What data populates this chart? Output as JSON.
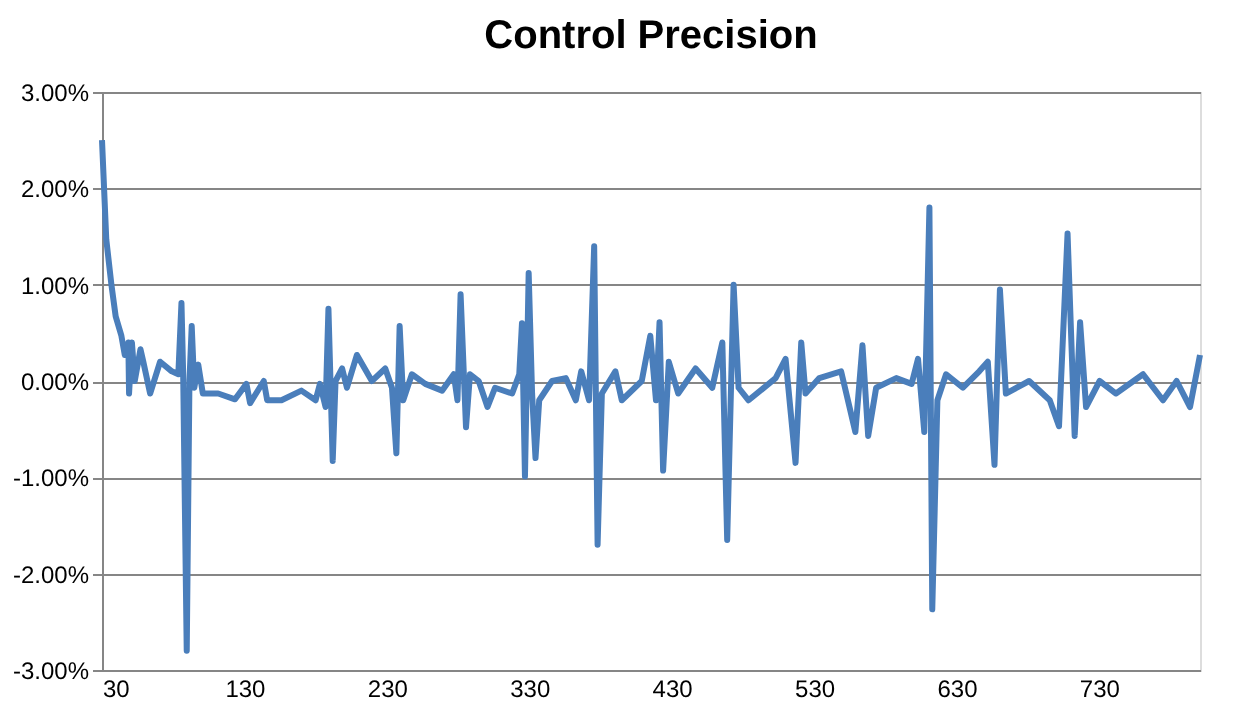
{
  "chart_data": {
    "type": "line",
    "title": "Control Precision",
    "x": [
      30,
      33,
      36.6,
      39.6,
      43.6,
      46,
      48.5,
      49,
      51,
      53,
      57,
      59,
      63.8,
      70.8,
      79,
      83.6,
      85.8,
      87,
      89.5,
      91.4,
      93,
      94.8,
      97.6,
      100.8,
      111.6,
      123.4,
      131.4,
      134,
      143.6,
      146,
      156,
      170,
      180,
      183,
      187,
      189,
      192,
      194,
      198.6,
      202,
      209,
      219.5,
      228.9,
      233.6,
      236.7,
      239,
      241.5,
      247.6,
      257,
      268.8,
      277,
      279.6,
      281.8,
      285.6,
      288.4,
      294.5,
      300.7,
      306,
      318,
      323,
      324.9,
      327,
      329.6,
      332,
      334.4,
      337,
      346,
      355.7,
      362.7,
      366.5,
      372,
      375.6,
      378,
      381,
      390.5,
      395,
      409,
      415,
      419,
      421.5,
      424,
      428,
      434.6,
      446.8,
      458.5,
      465.6,
      469,
      473.5,
      477,
      484,
      503,
      510,
      517,
      521,
      524,
      533.7,
      549,
      559,
      564,
      568,
      573.6,
      587.7,
      598.5,
      603,
      607.4,
      611,
      613,
      616.6,
      622.7,
      634.5,
      646,
      652,
      656.7,
      660.5,
      664.7,
      681,
      695.5,
      702,
      708,
      713,
      716.8,
      721,
      730.5,
      742,
      761,
      775,
      784.6,
      794,
      801
    ],
    "series": [
      {
        "color": "#4a7ebb",
        "values": [
          2.5,
          1.47,
          1.0,
          0.67,
          0.47,
          0.27,
          0.4,
          -0.13,
          0.4,
          0,
          0.33,
          0.2,
          -0.13,
          0.2,
          0.1,
          0.07,
          0.81,
          0.07,
          -2.8,
          0,
          0.57,
          -0.07,
          0.17,
          -0.13,
          -0.13,
          -0.19,
          -0.03,
          -0.23,
          0,
          -0.2,
          -0.2,
          -0.1,
          -0.2,
          -0.03,
          -0.27,
          0.75,
          -0.83,
          0,
          0.13,
          -0.07,
          0.27,
          0,
          0.13,
          -0.07,
          -0.75,
          0.57,
          -0.2,
          0.07,
          -0.03,
          -0.1,
          0.07,
          -0.2,
          0.9,
          -0.48,
          0.07,
          0,
          -0.27,
          -0.07,
          -0.13,
          0.07,
          0.6,
          -0.99,
          1.12,
          -0.13,
          -0.8,
          -0.2,
          0,
          0.03,
          -0.2,
          0.1,
          -0.2,
          1.4,
          -1.7,
          -0.13,
          0.1,
          -0.2,
          0,
          0.47,
          -0.2,
          0.61,
          -0.93,
          0.2,
          -0.13,
          0.13,
          -0.07,
          0.4,
          -1.65,
          1.0,
          -0.07,
          -0.2,
          0.03,
          0.23,
          -0.85,
          0.4,
          -0.13,
          0.03,
          0.1,
          -0.53,
          0.37,
          -0.57,
          -0.07,
          0.03,
          -0.03,
          0.23,
          -0.53,
          1.8,
          -2.37,
          -0.2,
          0.07,
          -0.07,
          0.1,
          0.2,
          -0.87,
          0.95,
          -0.13,
          0,
          -0.2,
          -0.47,
          1.53,
          -0.57,
          0.61,
          -0.27,
          0,
          -0.13,
          0.07,
          -0.2,
          0,
          -0.27,
          0.27
        ]
      }
    ],
    "xlim": [
      30,
      801
    ],
    "xticks": [
      30,
      130,
      230,
      330,
      430,
      530,
      630,
      730
    ],
    "ylim": [
      -3,
      3
    ],
    "yticks": [
      {
        "value": -3,
        "label": "-3.00%"
      },
      {
        "value": -2,
        "label": "-2.00%"
      },
      {
        "value": -1,
        "label": "-1.00%"
      },
      {
        "value": 0,
        "label": "0.00%"
      },
      {
        "value": 1,
        "label": "1.00%"
      },
      {
        "value": 2,
        "label": "2.00%"
      },
      {
        "value": 3,
        "label": "3.00%"
      }
    ],
    "grid": "y",
    "marker": "none",
    "line_style": "solid"
  }
}
